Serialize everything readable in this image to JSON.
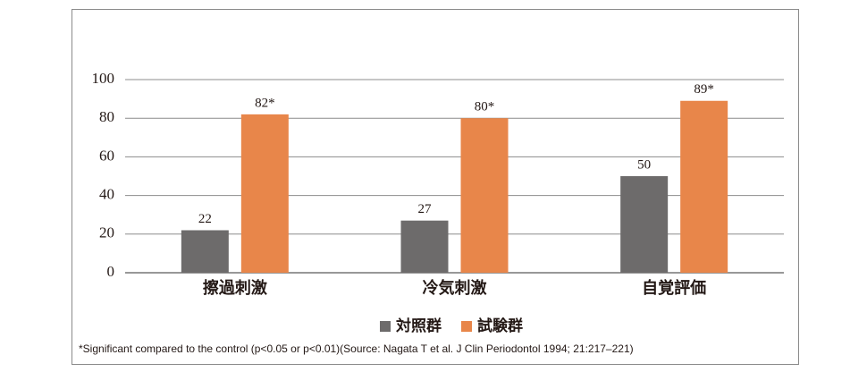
{
  "chart_data": {
    "type": "bar",
    "categories": [
      "擦過刺激",
      "冷気刺激",
      "自覚評価"
    ],
    "series": [
      {
        "name": "対照群",
        "color": "#6d6b6b",
        "values": [
          22,
          27,
          50
        ]
      },
      {
        "name": "試験群",
        "color": "#e8864a",
        "values": [
          82,
          80,
          89
        ],
        "value_labels": [
          "82*",
          "80*",
          "89*"
        ]
      }
    ],
    "ylim": [
      0,
      100
    ],
    "yticks": [
      0,
      20,
      40,
      60,
      80,
      100
    ],
    "grid": true,
    "footnote": "*Significant compared to the control (p<0.05 or p<0.01)(Source: Nagata T et al. J Clin Periodontol 1994; 21:217–221)"
  }
}
